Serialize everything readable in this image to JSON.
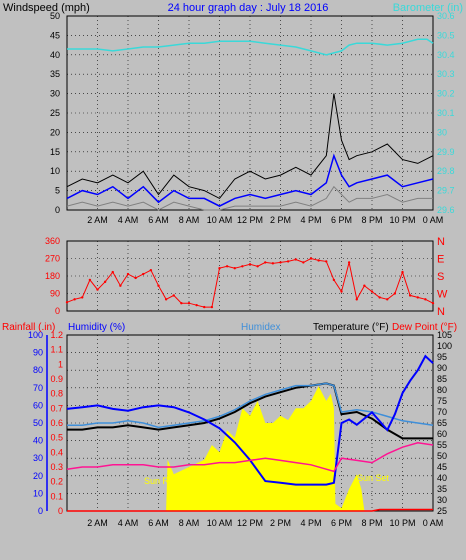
{
  "header": {
    "left_label": "Windspeed (mph)",
    "title": "24 hour graph day : July 18 2016",
    "right_label": "Barometer (in)"
  },
  "colors": {
    "background": "#c0c0c0",
    "wind_avg": "#0000ff",
    "wind_gust": "#000000",
    "wind_low": "#808080",
    "barometer": "#3ad9d9",
    "wind_dir": "#ff0000",
    "rainfall": "#ff0000",
    "humidity": "#0000ff",
    "humidex": "#3f8fd9",
    "temperature": "#000000",
    "dew_point": "#ff1493",
    "solar": "#ffff00",
    "axis_blue": "#0000ff",
    "axis_red": "#ff0000"
  },
  "x_ticks": [
    "2 AM",
    "4 AM",
    "6 AM",
    "8 AM",
    "10 AM",
    "12 PM",
    "2 PM",
    "4 PM",
    "6 PM",
    "8 PM",
    "10 PM",
    "0 AM"
  ],
  "panel3_labels": {
    "rainfall": "Rainfall (.in)",
    "humidity": "Humidity (%)",
    "humidex": "Humidex",
    "temperature": "Temperature (°F)",
    "dew_point": "Dew Point (°F)",
    "sun_rise": "Sun Rise",
    "sun_set": "Sun Set"
  },
  "chart_data": [
    {
      "type": "line",
      "xlabel": "",
      "ylabel": "Windspeed (mph)",
      "y2label": "Barometer (in)",
      "ylim": [
        0,
        50
      ],
      "yticks": [
        0,
        5,
        10,
        15,
        20,
        25,
        30,
        35,
        40,
        45,
        50
      ],
      "y2lim": [
        29.6,
        30.6
      ],
      "y2ticks": [
        "29.6",
        "29.7",
        "29.8",
        "29.9",
        "30",
        "30.1",
        "30.2",
        "30.3",
        "30.4",
        "30.5",
        "30.6"
      ],
      "xlim_hours": [
        0,
        24
      ],
      "grid": true,
      "series": [
        {
          "name": "Barometer (in)",
          "axis": "right",
          "x": [
            0,
            1,
            2,
            3,
            4,
            5,
            6,
            7,
            8,
            9,
            10,
            11,
            12,
            13,
            14,
            15,
            16,
            17,
            17.5,
            18,
            18.5,
            19,
            20,
            21,
            22,
            23,
            23.6,
            24
          ],
          "values": [
            30.43,
            30.43,
            30.43,
            30.42,
            30.43,
            30.44,
            30.44,
            30.45,
            30.46,
            30.46,
            30.47,
            30.47,
            30.47,
            30.46,
            30.45,
            30.44,
            30.42,
            30.4,
            30.41,
            30.42,
            30.45,
            30.46,
            30.46,
            30.45,
            30.46,
            30.48,
            30.48,
            30.46
          ]
        },
        {
          "name": "gust",
          "axis": "left",
          "x": [
            0,
            1,
            2,
            3,
            4,
            5,
            6,
            7,
            8,
            9,
            10,
            11,
            12,
            13,
            14,
            15,
            16,
            17,
            17.5,
            18,
            18.5,
            19,
            20,
            21,
            22,
            23,
            24
          ],
          "values": [
            6,
            8,
            7,
            9,
            7,
            10,
            4,
            9,
            6,
            5,
            3,
            8,
            10,
            8,
            9,
            11,
            9,
            14,
            30,
            18,
            13,
            14,
            15,
            17,
            13,
            12,
            14
          ]
        },
        {
          "name": "average",
          "axis": "left",
          "x": [
            0,
            1,
            2,
            3,
            4,
            5,
            6,
            7,
            8,
            9,
            10,
            11,
            12,
            13,
            14,
            15,
            16,
            17,
            17.5,
            18,
            18.5,
            19,
            20,
            21,
            22,
            23,
            24
          ],
          "values": [
            3,
            5,
            4,
            6,
            3,
            6,
            2,
            5,
            3,
            3,
            1,
            3,
            4,
            3,
            4,
            5,
            4,
            7,
            14,
            9,
            6,
            7,
            8,
            9,
            6,
            7,
            8
          ]
        },
        {
          "name": "low",
          "axis": "left",
          "x": [
            0,
            1,
            2,
            3,
            4,
            5,
            6,
            7,
            8,
            9,
            10,
            11,
            12,
            13,
            14,
            15,
            16,
            17,
            17.5,
            18,
            18.5,
            19,
            20,
            21,
            22,
            23,
            24
          ],
          "values": [
            1,
            2,
            1,
            2,
            1,
            2,
            0,
            2,
            1,
            0,
            0,
            1,
            1,
            1,
            1,
            2,
            1,
            3,
            6,
            4,
            2,
            3,
            3,
            4,
            2,
            3,
            3
          ]
        }
      ]
    },
    {
      "type": "scatter",
      "ylabel": "",
      "ylim": [
        0,
        360
      ],
      "yticks": [
        0,
        90,
        180,
        270,
        360
      ],
      "right_labels": [
        "N",
        "W",
        "S",
        "E",
        "N"
      ],
      "grid": true,
      "series": [
        {
          "name": "wind_direction",
          "x": [
            0,
            0.5,
            1,
            1.5,
            2,
            2.5,
            3,
            3.5,
            4,
            4.5,
            5,
            5.5,
            6,
            6.5,
            7,
            7.5,
            8,
            8.5,
            9,
            9.5,
            10,
            10.5,
            11,
            11.5,
            12,
            12.5,
            13,
            13.5,
            14,
            14.5,
            15,
            15.5,
            16,
            16.5,
            17,
            17.5,
            18,
            18.5,
            19,
            19.5,
            20,
            20.5,
            21,
            21.5,
            22,
            22.5,
            23,
            23.5,
            24
          ],
          "values": [
            45,
            60,
            70,
            160,
            110,
            150,
            200,
            130,
            190,
            170,
            190,
            210,
            130,
            60,
            80,
            40,
            40,
            30,
            20,
            20,
            220,
            230,
            220,
            230,
            240,
            230,
            250,
            245,
            250,
            255,
            265,
            250,
            270,
            260,
            255,
            160,
            100,
            250,
            60,
            130,
            100,
            70,
            60,
            90,
            200,
            80,
            70,
            60,
            40
          ]
        }
      ]
    },
    {
      "type": "line",
      "ylabel": "Rainfall (.in)",
      "ylim_rain": [
        0,
        1.2
      ],
      "ylim_humidity": [
        0,
        100
      ],
      "ylim_temp": [
        25,
        105
      ],
      "yticks_rain": [
        "0",
        "0.1",
        "0.2",
        "0.3",
        "0.4",
        "0.5",
        "0.6",
        "0.7",
        "0.8",
        "0.9",
        "1",
        "1.1",
        "1.2"
      ],
      "yticks_humidity": [
        0,
        10,
        20,
        30,
        40,
        50,
        60,
        70,
        80,
        90,
        100
      ],
      "yticks_temp": [
        25,
        30,
        35,
        40,
        45,
        50,
        55,
        60,
        65,
        70,
        75,
        80,
        85,
        90,
        95,
        100,
        105
      ],
      "grid": true,
      "series": [
        {
          "name": "Temperature (°F)",
          "axis": "temp",
          "x": [
            0,
            1,
            2,
            3,
            4,
            5,
            6,
            7,
            8,
            9,
            10,
            11,
            12,
            13,
            14,
            15,
            16,
            17,
            17.5,
            18,
            19,
            20,
            21,
            22,
            23,
            24
          ],
          "values": [
            62,
            62,
            63,
            63,
            64,
            63,
            62,
            63,
            64,
            65,
            67,
            70,
            74,
            77,
            79,
            81,
            82,
            83,
            82,
            69,
            70,
            67,
            62,
            58,
            58,
            58
          ]
        },
        {
          "name": "Humidex",
          "axis": "temp",
          "x": [
            0,
            1,
            2,
            3,
            4,
            5,
            6,
            7,
            8,
            9,
            10,
            11,
            12,
            13,
            14,
            15,
            16,
            17,
            17.5,
            18,
            19,
            20,
            21,
            22,
            23,
            24
          ],
          "values": [
            64,
            64,
            65,
            65,
            66,
            65,
            63,
            64,
            65,
            66,
            68,
            71,
            75,
            78,
            80,
            82,
            82,
            83,
            82,
            70,
            71,
            70,
            68,
            66,
            65,
            64
          ]
        },
        {
          "name": "Humidity (%)",
          "axis": "humidity",
          "x": [
            0,
            1,
            2,
            3,
            4,
            5,
            6,
            7,
            8,
            9,
            10,
            11,
            12,
            13,
            14,
            15,
            16,
            17,
            17.5,
            18,
            18.5,
            19,
            20,
            21,
            21.5,
            22,
            22.5,
            23,
            23.5,
            24
          ],
          "values": [
            58,
            59,
            60,
            58,
            57,
            59,
            60,
            59,
            56,
            52,
            47,
            39,
            29,
            17,
            16,
            15,
            15,
            15,
            16,
            50,
            52,
            49,
            56,
            46,
            55,
            67,
            74,
            80,
            88,
            84
          ]
        },
        {
          "name": "Dew Point (°F)",
          "axis": "temp",
          "x": [
            0,
            1,
            2,
            3,
            4,
            5,
            6,
            7,
            8,
            9,
            10,
            11,
            12,
            13,
            14,
            15,
            16,
            17,
            17.5,
            18,
            19,
            20,
            21,
            22,
            23,
            24
          ],
          "values": [
            44,
            45,
            45,
            46,
            46,
            46,
            45,
            45,
            46,
            46,
            47,
            47,
            48,
            49,
            48,
            47,
            46,
            44,
            43,
            49,
            48,
            47,
            51,
            54,
            56,
            55
          ]
        },
        {
          "name": "Rainfall (.in)",
          "axis": "rain",
          "x": [
            0,
            20,
            20.5,
            24
          ],
          "values": [
            0,
            0,
            0.01,
            0.01
          ]
        },
        {
          "name": "Solar",
          "axis": "rain",
          "x": [
            0,
            6.5,
            6.6,
            7,
            8,
            9,
            9.5,
            10,
            10.5,
            11,
            11.5,
            12,
            12.5,
            13,
            13.5,
            14,
            14.5,
            15,
            15.5,
            16,
            16.5,
            17,
            17.3,
            17.5,
            17.6,
            18,
            18.5,
            19,
            19.3,
            19.5,
            24
          ],
          "values": [
            0,
            0,
            0.35,
            0.25,
            0.3,
            0.35,
            0.45,
            0.4,
            0.55,
            0.5,
            0.7,
            0.65,
            0.75,
            0.6,
            0.6,
            0.65,
            0.62,
            0.7,
            0.7,
            0.75,
            0.85,
            0.75,
            0.8,
            0.7,
            0.05,
            0.02,
            0.15,
            0.25,
            0.15,
            0,
            0
          ]
        }
      ]
    }
  ]
}
